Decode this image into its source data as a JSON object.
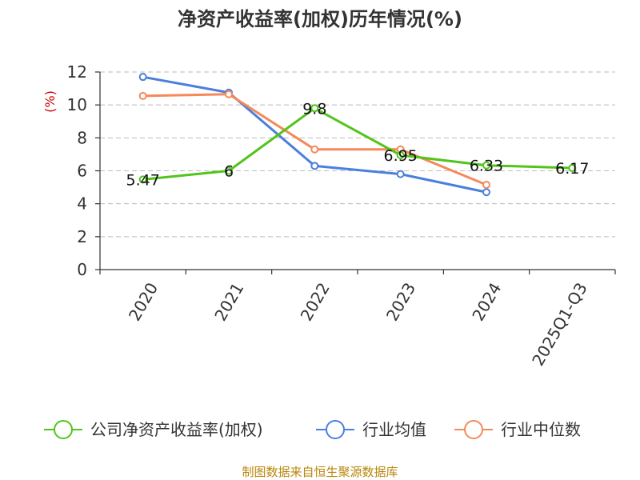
{
  "chart_data": {
    "type": "line",
    "title": "净资产收益率(加权)历年情况(%)",
    "ylabel": "(%)",
    "categories": [
      "2020",
      "2021",
      "2022",
      "2023",
      "2024",
      "2025Q1-Q3"
    ],
    "y_ticks": [
      0,
      2,
      4,
      6,
      8,
      10,
      12
    ],
    "ylim": [
      0,
      12
    ],
    "grid": true,
    "legend_position": "bottom",
    "series": [
      {
        "name": "公司净资产收益率(加权)",
        "color": "#52c41a",
        "values": [
          5.47,
          6,
          9.8,
          6.95,
          6.33,
          6.17
        ],
        "labels": [
          "5.47",
          "6",
          "9.8",
          "6.95",
          "6.33",
          "6.17"
        ]
      },
      {
        "name": "行业均值",
        "color": "#4a7fdc",
        "values": [
          11.7,
          10.75,
          6.3,
          5.8,
          4.7,
          null
        ]
      },
      {
        "name": "行业中位数",
        "color": "#f4895a",
        "values": [
          10.55,
          10.65,
          7.3,
          7.3,
          5.15,
          null
        ]
      }
    ]
  },
  "footer": {
    "source": "制图数据来自恒生聚源数据库"
  }
}
